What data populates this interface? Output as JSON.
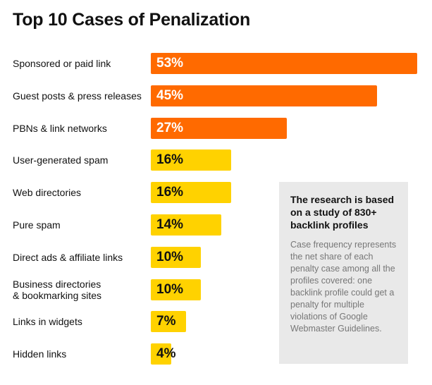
{
  "chart_data": {
    "type": "bar",
    "orientation": "horizontal",
    "title": "Top 10 Cases of Penalization",
    "categories": [
      "Sponsored or paid link",
      "Guest posts & press releases",
      "PBNs & link networks",
      "User-generated spam",
      "Web directories",
      "Pure spam",
      "Direct ads & affiliate links",
      "Business directories\n& bookmarking sites",
      "Links in widgets",
      "Hidden links"
    ],
    "values": [
      53,
      45,
      27,
      16,
      16,
      14,
      10,
      10,
      7,
      4
    ],
    "value_labels": [
      "53%",
      "45%",
      "27%",
      "16%",
      "16%",
      "14%",
      "10%",
      "10%",
      "7%",
      "4%"
    ],
    "unit": "%",
    "xlim": [
      0,
      53
    ],
    "grid": false,
    "legend": "none",
    "colors": {
      "high": "#ff6a00",
      "low": "#ffd200"
    }
  },
  "note": {
    "heading": "The research is based on a study of 830+ backlink profiles",
    "body": "Case frequency represents the net share of each penalty case among all the profiles covered: one backlink profile could get a penalty for multiple violations of Google Webmaster Guidelines."
  }
}
